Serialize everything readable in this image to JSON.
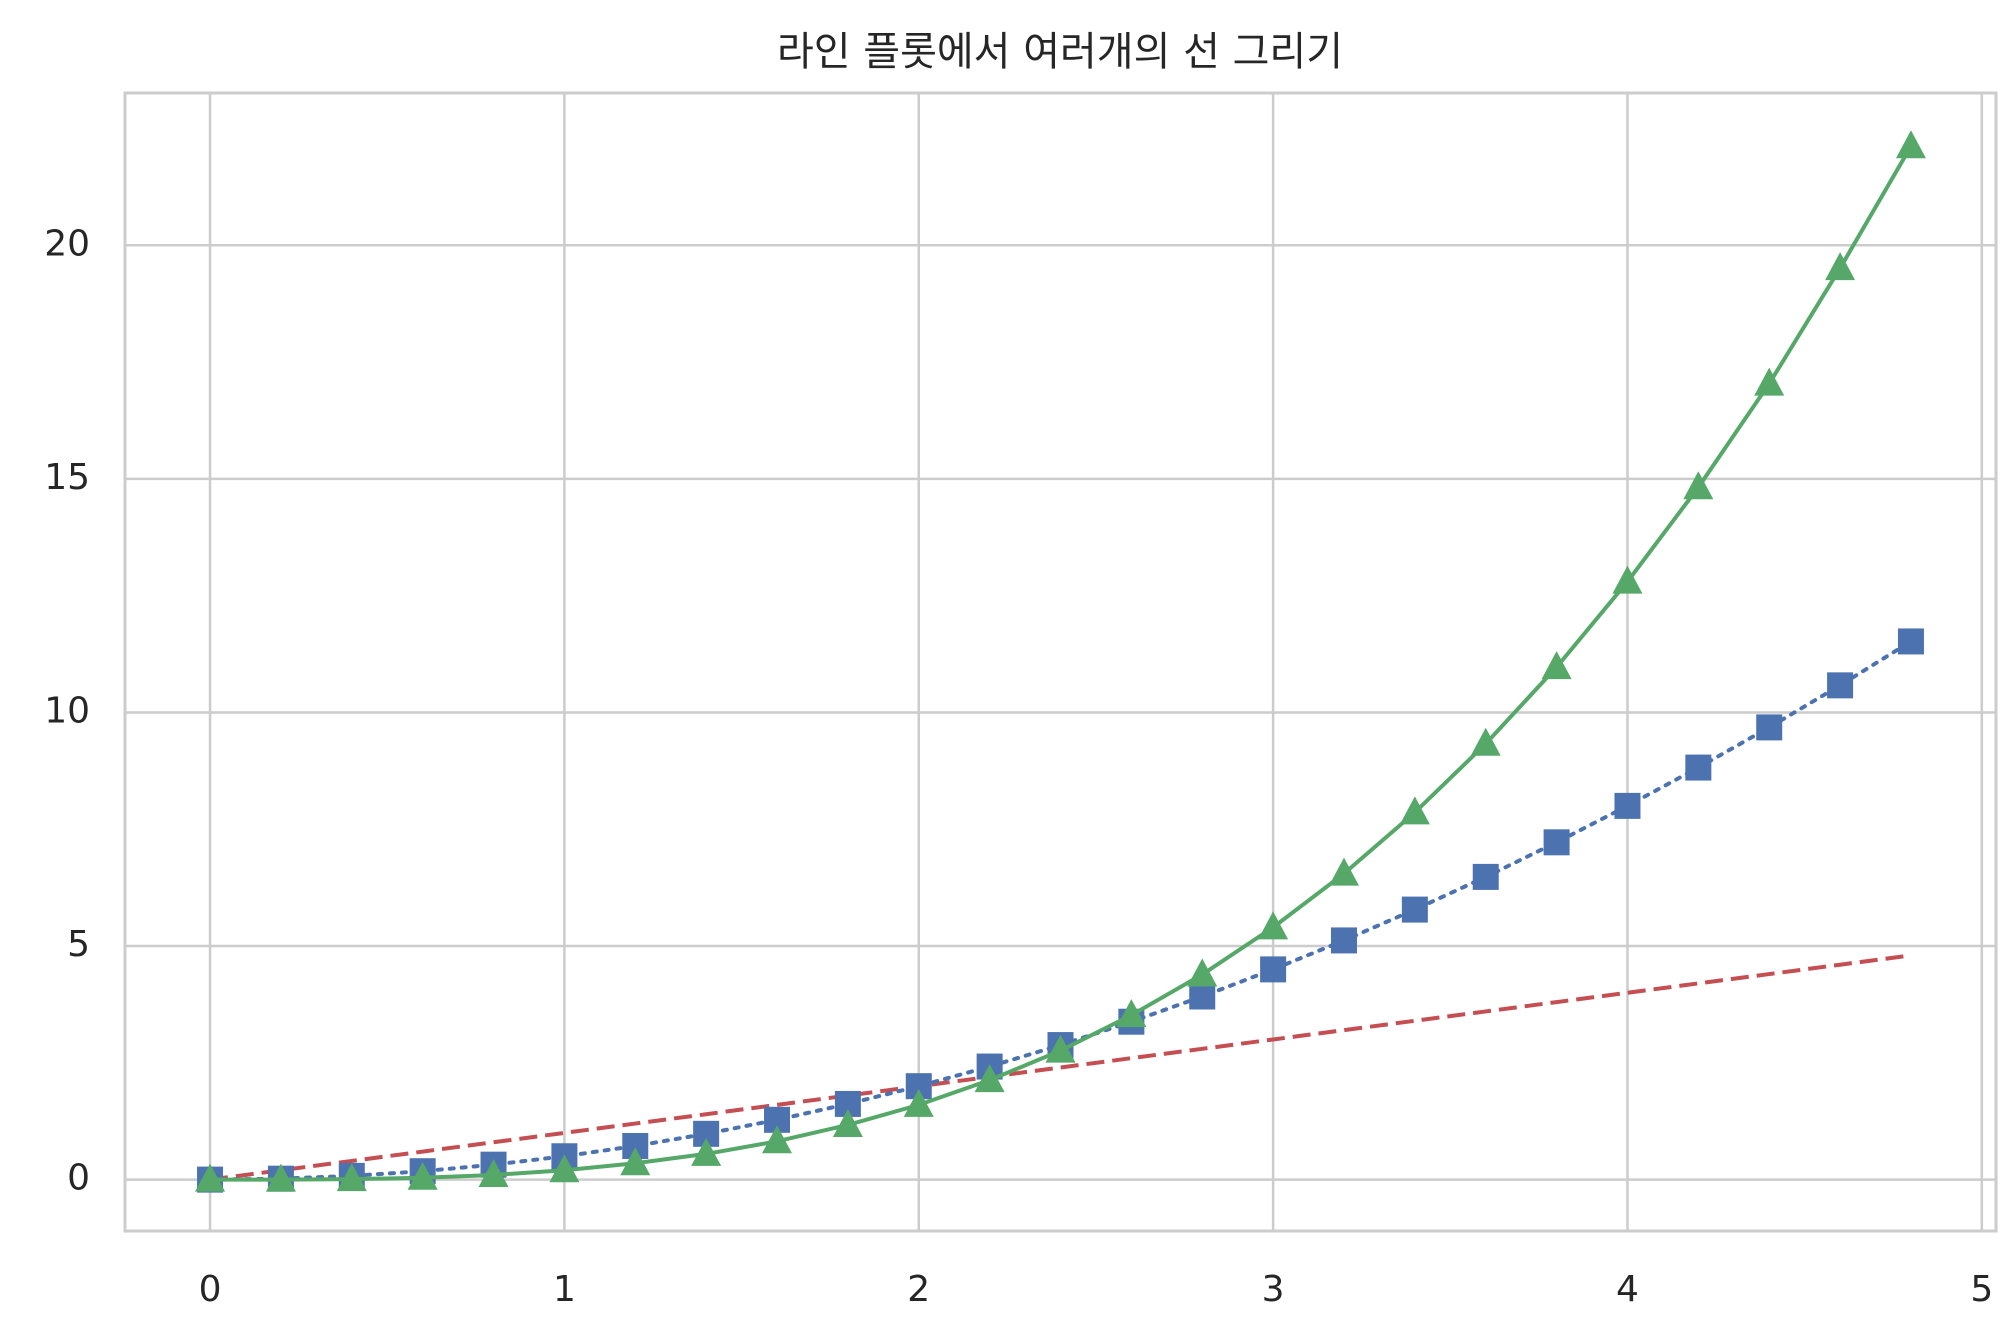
{
  "chart_data": {
    "type": "line",
    "title": "라인 플롯에서 여러개의 선 그리기",
    "x": [
      0,
      0.2,
      0.4,
      0.6,
      0.8,
      1,
      1.2,
      1.4,
      1.6,
      1.8,
      2,
      2.2,
      2.4,
      2.6,
      2.8,
      3,
      3.2,
      3.4,
      3.6,
      3.8,
      4,
      4.2,
      4.4,
      4.6,
      4.8
    ],
    "series": [
      {
        "color": "#c44e52",
        "linestyle": "dashed",
        "marker": "none",
        "values": [
          0,
          0.2,
          0.4,
          0.6,
          0.8,
          1,
          1.2,
          1.4,
          1.6,
          1.8,
          2,
          2.2,
          2.4,
          2.6,
          2.8,
          3,
          3.2,
          3.4,
          3.6,
          3.8,
          4,
          4.2,
          4.4,
          4.6,
          4.8
        ]
      },
      {
        "color": "#4c72b0",
        "linestyle": "dotted",
        "marker": "square",
        "values": [
          0,
          0.02,
          0.08,
          0.18,
          0.32,
          0.5,
          0.72,
          0.98,
          1.28,
          1.62,
          2,
          2.42,
          2.88,
          3.38,
          3.92,
          4.5,
          5.12,
          5.78,
          6.48,
          7.22,
          8,
          8.82,
          9.68,
          10.58,
          11.52
        ]
      },
      {
        "color": "#55a868",
        "linestyle": "solid",
        "marker": "triangle",
        "values": [
          0,
          0,
          0.01,
          0.04,
          0.1,
          0.2,
          0.35,
          0.55,
          0.82,
          1.17,
          1.6,
          2.13,
          2.76,
          3.52,
          4.39,
          5.4,
          6.55,
          7.86,
          9.33,
          10.97,
          12.8,
          14.82,
          17.04,
          19.51,
          22.12
        ]
      }
    ],
    "xlim": [
      -0.24,
      5.04
    ],
    "xticks": [
      0,
      1,
      2,
      3,
      4,
      5
    ],
    "ylim": [
      -1.1,
      23.26
    ],
    "yticks": [
      0,
      5,
      10,
      15,
      20
    ],
    "grid": true
  }
}
